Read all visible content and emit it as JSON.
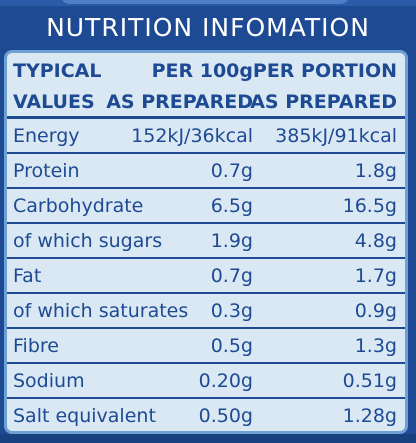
{
  "heading": "NUTRITION INFOMATION",
  "columns": {
    "label": [
      "TYPICAL",
      "VALUES"
    ],
    "per_100g": [
      "PER 100g",
      "AS PREPARED"
    ],
    "per_portion": [
      "PER PORTION",
      "AS PREPARED"
    ]
  },
  "rows": [
    {
      "label": "Energy",
      "per_100g": "152kJ/36kcal",
      "per_portion": "385kJ/91kcal"
    },
    {
      "label": "Protein",
      "per_100g": "0.7g",
      "per_portion": "1.8g"
    },
    {
      "label": "Carbohydrate",
      "per_100g": "6.5g",
      "per_portion": "16.5g"
    },
    {
      "label": "of which sugars",
      "per_100g": "1.9g",
      "per_portion": "4.8g"
    },
    {
      "label": "Fat",
      "per_100g": "0.7g",
      "per_portion": "1.7g"
    },
    {
      "label": "of which saturates",
      "per_100g": "0.3g",
      "per_portion": "0.9g"
    },
    {
      "label": "Fibre",
      "per_100g": "0.5g",
      "per_portion": "1.3g"
    },
    {
      "label": "Sodium",
      "per_100g": "0.20g",
      "per_portion": "0.51g"
    },
    {
      "label": "Salt equivalent",
      "per_100g": "0.50g",
      "per_portion": "1.28g"
    }
  ]
}
